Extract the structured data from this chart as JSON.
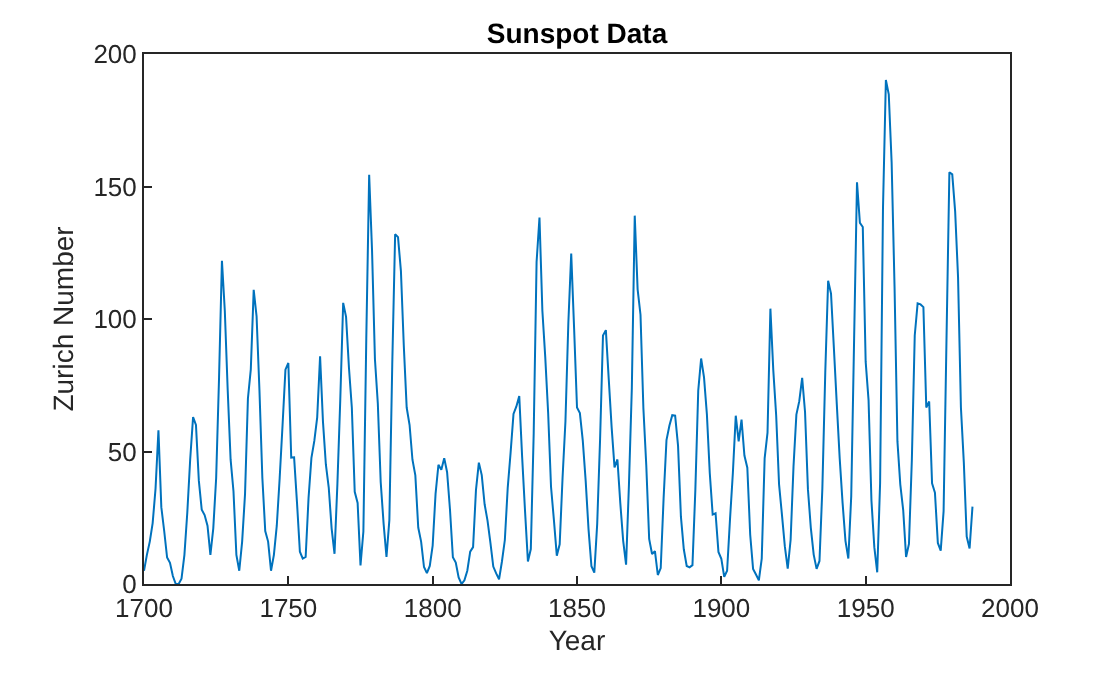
{
  "chart_data": {
    "type": "line",
    "title": "Sunspot Data",
    "xlabel": "Year",
    "ylabel": "Zurich Number",
    "xlim": [
      1700,
      2000
    ],
    "xticks": [
      1700,
      1750,
      1800,
      1850,
      1900,
      1950,
      2000
    ],
    "ylim": [
      0,
      200
    ],
    "yticks": [
      0,
      50,
      100,
      150,
      200
    ],
    "marker": "none",
    "line_style": "solid",
    "x": [
      1700,
      1701,
      1702,
      1703,
      1704,
      1705,
      1706,
      1707,
      1708,
      1709,
      1710,
      1711,
      1712,
      1713,
      1714,
      1715,
      1716,
      1717,
      1718,
      1719,
      1720,
      1721,
      1722,
      1723,
      1724,
      1725,
      1726,
      1727,
      1728,
      1729,
      1730,
      1731,
      1732,
      1733,
      1734,
      1735,
      1736,
      1737,
      1738,
      1739,
      1740,
      1741,
      1742,
      1743,
      1744,
      1745,
      1746,
      1747,
      1748,
      1749,
      1750,
      1751,
      1752,
      1753,
      1754,
      1755,
      1756,
      1757,
      1758,
      1759,
      1760,
      1761,
      1762,
      1763,
      1764,
      1765,
      1766,
      1767,
      1768,
      1769,
      1770,
      1771,
      1772,
      1773,
      1774,
      1775,
      1776,
      1777,
      1778,
      1779,
      1780,
      1781,
      1782,
      1783,
      1784,
      1785,
      1786,
      1787,
      1788,
      1789,
      1790,
      1791,
      1792,
      1793,
      1794,
      1795,
      1796,
      1797,
      1798,
      1799,
      1800,
      1801,
      1802,
      1803,
      1804,
      1805,
      1806,
      1807,
      1808,
      1809,
      1810,
      1811,
      1812,
      1813,
      1814,
      1815,
      1816,
      1817,
      1818,
      1819,
      1820,
      1821,
      1822,
      1823,
      1824,
      1825,
      1826,
      1827,
      1828,
      1829,
      1830,
      1831,
      1832,
      1833,
      1834,
      1835,
      1836,
      1837,
      1838,
      1839,
      1840,
      1841,
      1842,
      1843,
      1844,
      1845,
      1846,
      1847,
      1848,
      1849,
      1850,
      1851,
      1852,
      1853,
      1854,
      1855,
      1856,
      1857,
      1858,
      1859,
      1860,
      1861,
      1862,
      1863,
      1864,
      1865,
      1866,
      1867,
      1868,
      1869,
      1870,
      1871,
      1872,
      1873,
      1874,
      1875,
      1876,
      1877,
      1878,
      1879,
      1880,
      1881,
      1882,
      1883,
      1884,
      1885,
      1886,
      1887,
      1888,
      1889,
      1890,
      1891,
      1892,
      1893,
      1894,
      1895,
      1896,
      1897,
      1898,
      1899,
      1900,
      1901,
      1902,
      1903,
      1904,
      1905,
      1906,
      1907,
      1908,
      1909,
      1910,
      1911,
      1912,
      1913,
      1914,
      1915,
      1916,
      1917,
      1918,
      1919,
      1920,
      1921,
      1922,
      1923,
      1924,
      1925,
      1926,
      1927,
      1928,
      1929,
      1930,
      1931,
      1932,
      1933,
      1934,
      1935,
      1936,
      1937,
      1938,
      1939,
      1940,
      1941,
      1942,
      1943,
      1944,
      1945,
      1946,
      1947,
      1948,
      1949,
      1950,
      1951,
      1952,
      1953,
      1954,
      1955,
      1956,
      1957,
      1958,
      1959,
      1960,
      1961,
      1962,
      1963,
      1964,
      1965,
      1966,
      1967,
      1968,
      1969,
      1970,
      1971,
      1972,
      1973,
      1974,
      1975,
      1976,
      1977,
      1978,
      1979,
      1980,
      1981,
      1982,
      1983,
      1984,
      1985,
      1986,
      1987
    ],
    "series": [
      {
        "color": "#0072bd",
        "values": [
          5,
          11,
          16,
          23,
          36,
          58,
          29,
          20,
          10,
          8,
          3,
          0,
          0,
          2,
          11,
          27,
          47,
          63,
          60,
          39,
          28,
          26,
          22,
          11,
          21,
          40,
          78,
          122,
          103,
          73,
          47,
          35,
          11,
          5,
          16,
          34,
          70,
          81,
          111,
          101,
          73,
          40,
          20,
          16,
          5,
          11,
          22,
          40,
          60,
          80.9,
          83.4,
          47.7,
          47.8,
          30.7,
          12.2,
          9.6,
          10.2,
          32.4,
          47.6,
          54,
          62.9,
          85.9,
          61.2,
          45.1,
          36.4,
          20.9,
          11.4,
          37.8,
          69.8,
          106.1,
          100.8,
          81.6,
          66.5,
          34.8,
          30.6,
          7,
          19.8,
          92.5,
          154.4,
          125.9,
          84.8,
          68.1,
          38.5,
          22.8,
          10.2,
          24.1,
          82.9,
          132,
          130.9,
          118.1,
          89.9,
          66.6,
          60,
          46.9,
          41,
          21.3,
          16,
          6.4,
          4.1,
          6.8,
          14.5,
          34,
          45,
          43.1,
          47.5,
          42.2,
          28.1,
          10.1,
          8.1,
          2.5,
          0,
          1.4,
          5,
          12.2,
          13.9,
          35.4,
          45.8,
          41.1,
          30.1,
          23.9,
          15.6,
          6.6,
          4,
          1.8,
          8.5,
          16.6,
          36.3,
          49.6,
          64.2,
          67,
          70.9,
          47.8,
          27.5,
          8.5,
          13.2,
          56.9,
          121.5,
          138.3,
          103.2,
          85.7,
          64.6,
          36.7,
          24.2,
          10.7,
          15,
          40.1,
          61.5,
          98.5,
          124.7,
          96.3,
          66.6,
          64.5,
          54.1,
          39,
          20.6,
          6.7,
          4.3,
          22.7,
          54.8,
          93.8,
          95.8,
          77.2,
          59.1,
          44,
          47,
          30.5,
          16.3,
          7.3,
          37.6,
          74,
          139,
          111.2,
          101.6,
          66.2,
          44.7,
          17,
          11.3,
          12.4,
          3.4,
          6,
          32.3,
          54.3,
          59.7,
          63.7,
          63.5,
          52.2,
          25.4,
          13.1,
          6.8,
          6.3,
          7.1,
          35.6,
          73,
          85.1,
          78,
          64,
          41.8,
          26.2,
          26.7,
          12.1,
          9.5,
          2.7,
          5,
          24.4,
          42,
          63.5,
          53.8,
          62,
          48.5,
          43.9,
          18.6,
          5.7,
          3.6,
          1.4,
          9.6,
          47.4,
          57.1,
          103.9,
          80.6,
          63.6,
          37.6,
          26.1,
          14.2,
          5.8,
          16.7,
          44.3,
          63.9,
          69,
          77.8,
          64.9,
          35.7,
          21.2,
          11.1,
          5.7,
          8.7,
          36.1,
          79.7,
          114.4,
          109.6,
          88.8,
          67.8,
          47.5,
          30.6,
          16.3,
          9.6,
          33.2,
          92.6,
          151.6,
          136.3,
          134.7,
          83.9,
          69.4,
          31.5,
          13.9,
          4.4,
          38,
          141.7,
          190.2,
          184.8,
          159,
          112.3,
          53.9,
          37.5,
          27.9,
          10.2,
          15.1,
          47,
          93.8,
          105.9,
          105.5,
          104.5,
          66.6,
          68.9,
          38,
          34.5,
          15.5,
          12.6,
          27.5,
          92.5,
          155.4,
          154.6,
          140.5,
          115.9,
          66.6,
          45.9,
          17.9,
          13.4,
          29.2
        ]
      }
    ]
  }
}
